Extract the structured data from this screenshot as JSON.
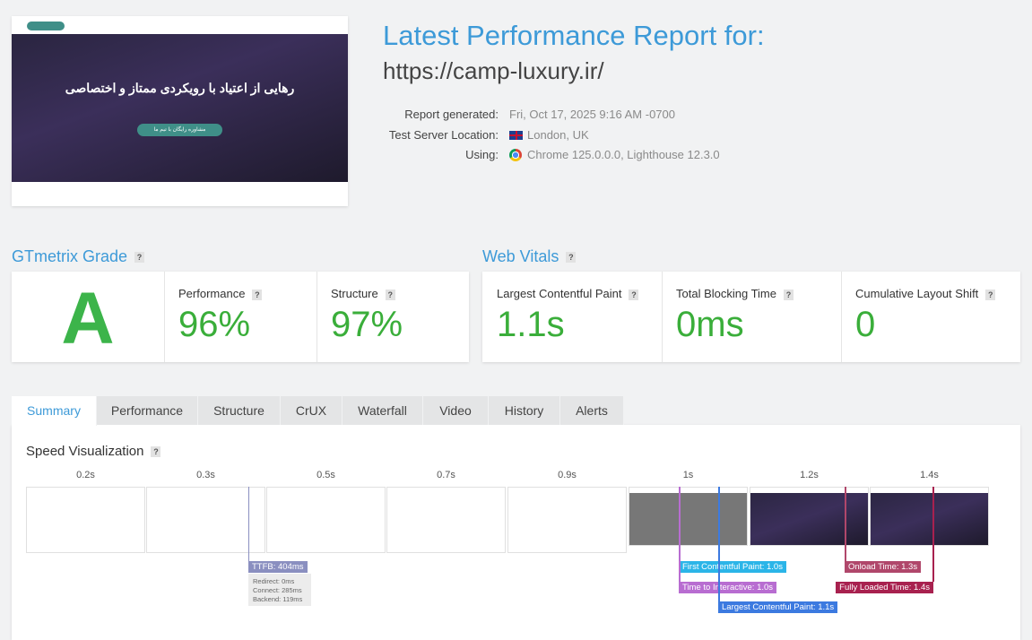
{
  "header": {
    "title": "Latest Performance Report for:",
    "url": "https://camp-luxury.ir/"
  },
  "meta": [
    {
      "label": "Report generated:",
      "value": "Fri, Oct 17, 2025 9:16 AM -0700"
    },
    {
      "label": "Test Server Location:",
      "value": "London, UK"
    },
    {
      "label": "Using:",
      "value": "Chrome 125.0.0.0, Lighthouse 12.3.0"
    }
  ],
  "screenshot": {
    "headline": "رهایی از اعتیاد با رویکردی ممتاز و اختصاصی",
    "cta": "مشاوره رایگان با تیم ما"
  },
  "help": "?",
  "grade": {
    "title": "GTmetrix Grade",
    "letter": "A",
    "items": [
      {
        "label": "Performance",
        "value": "96%"
      },
      {
        "label": "Structure",
        "value": "97%"
      }
    ]
  },
  "vitals": {
    "title": "Web Vitals",
    "items": [
      {
        "label": "Largest Contentful Paint",
        "value": "1.1s"
      },
      {
        "label": "Total Blocking Time",
        "value": "0ms"
      },
      {
        "label": "Cumulative Layout Shift",
        "value": "0"
      }
    ]
  },
  "tabs": [
    "Summary",
    "Performance",
    "Structure",
    "CrUX",
    "Waterfall",
    "Video",
    "History",
    "Alerts"
  ],
  "speed": {
    "title": "Speed Visualization",
    "frames": [
      "0.2s",
      "0.3s",
      "0.5s",
      "0.7s",
      "0.9s",
      "1s",
      "1.2s",
      "1.4s"
    ],
    "ttfb": {
      "label": "TTFB: 404ms",
      "details": [
        "Redirect: 0ms",
        "Connect: 285ms",
        "Backend: 119ms"
      ]
    },
    "markers": [
      "First Contentful Paint: 1.0s",
      "Time to Interactive: 1.0s",
      "Largest Contentful Paint: 1.1s",
      "Onload Time: 1.3s",
      "Fully Loaded Time: 1.4s"
    ]
  }
}
